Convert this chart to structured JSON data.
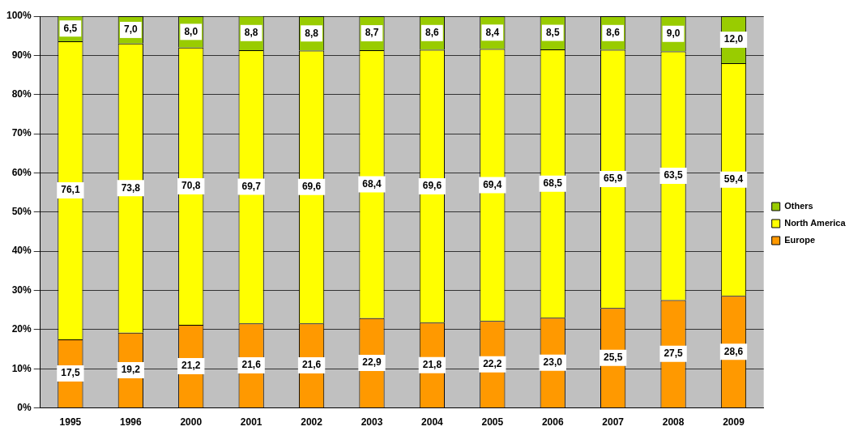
{
  "chart_data": {
    "type": "bar",
    "stacked": true,
    "categories": [
      "1995",
      "1996",
      "2000",
      "2001",
      "2002",
      "2003",
      "2004",
      "2005",
      "2006",
      "2007",
      "2008",
      "2009"
    ],
    "series": [
      {
        "name": "Europe",
        "color": "#ff9900",
        "values": [
          17.5,
          19.2,
          21.2,
          21.6,
          21.6,
          22.9,
          21.8,
          22.2,
          23.0,
          25.5,
          27.5,
          28.6
        ],
        "value_labels": [
          "17,5",
          "19,2",
          "21,2",
          "21,6",
          "21,6",
          "22,9",
          "21,8",
          "22,2",
          "23,0",
          "25,5",
          "27,5",
          "28,6"
        ]
      },
      {
        "name": "North America",
        "color": "#ffff00",
        "values": [
          76.1,
          73.8,
          70.8,
          69.7,
          69.6,
          68.4,
          69.6,
          69.4,
          68.5,
          65.9,
          63.5,
          59.4
        ],
        "value_labels": [
          "76,1",
          "73,8",
          "70,8",
          "69,7",
          "69,6",
          "68,4",
          "69,6",
          "69,4",
          "68,5",
          "65,9",
          "63,5",
          "59,4"
        ]
      },
      {
        "name": "Others",
        "color": "#99cc00",
        "values": [
          6.5,
          7.0,
          8.0,
          8.8,
          8.8,
          8.7,
          8.6,
          8.4,
          8.5,
          8.6,
          9.0,
          12.0
        ],
        "value_labels": [
          "6,5",
          "7,0",
          "8,0",
          "8,8",
          "8,8",
          "8,7",
          "8,6",
          "8,4",
          "8,5",
          "8,6",
          "9,0",
          "12,0"
        ]
      }
    ],
    "ylim": [
      0,
      100
    ],
    "yticks": [
      {
        "value": 0,
        "label": "0%"
      },
      {
        "value": 10,
        "label": "10%"
      },
      {
        "value": 20,
        "label": "20%"
      },
      {
        "value": 30,
        "label": "30%"
      },
      {
        "value": 40,
        "label": "40%"
      },
      {
        "value": 50,
        "label": "50%"
      },
      {
        "value": 60,
        "label": "60%"
      },
      {
        "value": 70,
        "label": "70%"
      },
      {
        "value": 80,
        "label": "80%"
      },
      {
        "value": 90,
        "label": "90%"
      },
      {
        "value": 100,
        "label": "100%"
      }
    ],
    "grid": "y",
    "legend": "right"
  }
}
